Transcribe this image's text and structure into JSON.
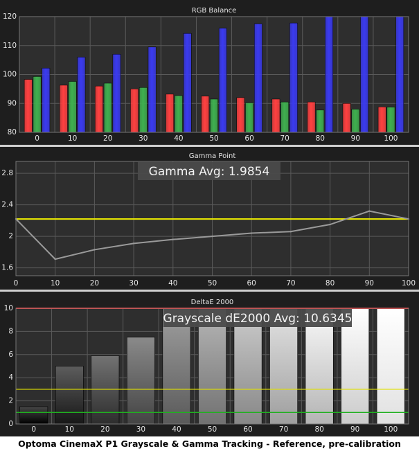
{
  "caption": "Optoma CinemaX P1 Grayscale & Gamma Tracking - Reference, pre-calibration",
  "colors": {
    "panel_bg": "#1e1e1e",
    "plot_bg": "#2e2e2e",
    "grid": "#5a5a5a",
    "text": "#e6e6e6",
    "red": "#ff4040",
    "green": "#3fb04f",
    "blue": "#3a3af0",
    "gamma_line": "#9a9a9a",
    "gamma_ref": "#f0f000",
    "de_red": "#ff3030",
    "de_yellow": "#e0e000",
    "de_green": "#20b020"
  },
  "chart_data": [
    {
      "type": "bar",
      "title": "RGB Balance",
      "categories": [
        "0",
        "10",
        "20",
        "30",
        "40",
        "50",
        "60",
        "70",
        "80",
        "90",
        "100"
      ],
      "series": [
        {
          "color": "red",
          "values": [
            98.3,
            96.3,
            96.0,
            95.0,
            93.2,
            92.5,
            92.0,
            91.5,
            90.5,
            90.0,
            88.8
          ]
        },
        {
          "color": "green",
          "values": [
            99.3,
            97.6,
            97.0,
            95.5,
            92.7,
            91.5,
            90.2,
            90.5,
            87.7,
            88.0,
            88.7
          ]
        },
        {
          "color": "blue",
          "values": [
            102.2,
            106.0,
            107.0,
            109.5,
            114.2,
            116.0,
            117.5,
            117.8,
            120.0,
            120.0,
            120.0
          ]
        }
      ],
      "ylim": [
        80,
        120
      ],
      "yticks": [
        "80",
        "90",
        "100",
        "110",
        "120"
      ],
      "grid": true
    },
    {
      "type": "line",
      "title": "Gamma Point",
      "annotation": "Gamma Avg: 1.9854",
      "x": [
        0,
        10,
        20,
        30,
        40,
        50,
        60,
        70,
        80,
        90,
        100
      ],
      "xticks": [
        "0",
        "10",
        "20",
        "30",
        "40",
        "50",
        "60",
        "70",
        "80",
        "90",
        "100"
      ],
      "values": [
        2.22,
        1.71,
        1.83,
        1.91,
        1.96,
        2.0,
        2.04,
        2.06,
        2.15,
        2.32,
        2.22
      ],
      "reference": 2.22,
      "ylim": [
        1.5,
        2.95
      ],
      "yticks": [
        "1.6",
        "2",
        "2.4",
        "2.8"
      ],
      "grid": true
    },
    {
      "type": "bar",
      "title": "DeltaE 2000",
      "annotation": "Grayscale dE2000 Avg: 10.6345",
      "categories": [
        "0",
        "10",
        "20",
        "30",
        "40",
        "50",
        "60",
        "70",
        "80",
        "90",
        "100"
      ],
      "values": [
        1.5,
        5.0,
        5.9,
        7.5,
        10.0,
        10.0,
        10.0,
        10.0,
        10.0,
        10.0,
        10.0
      ],
      "thresholds": {
        "red": 10,
        "yellow": 3,
        "green": 1
      },
      "ylim": [
        0,
        10
      ],
      "yticks": [
        "0",
        "2",
        "4",
        "6",
        "8",
        "10"
      ],
      "grid": true
    }
  ]
}
